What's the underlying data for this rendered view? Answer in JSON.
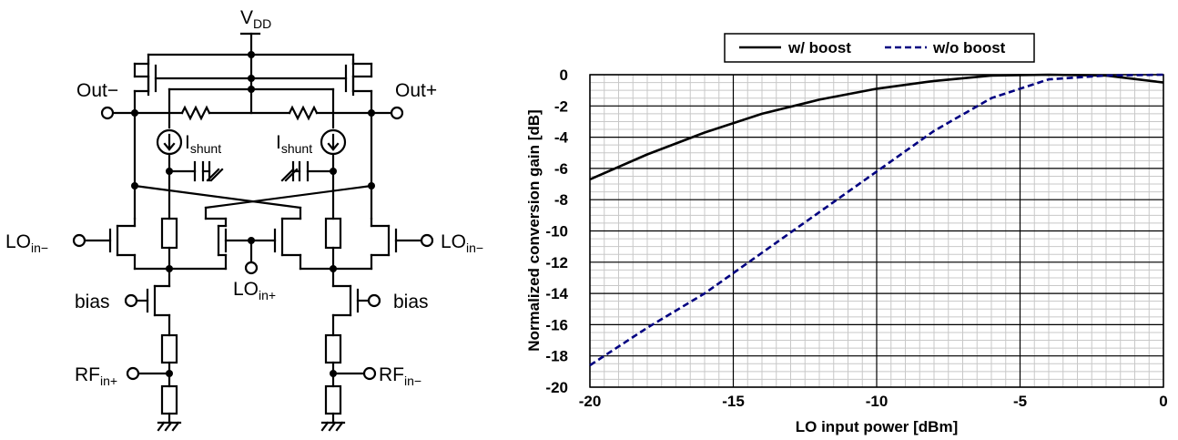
{
  "circuit": {
    "vdd": {
      "main": "V",
      "sub": "DD"
    },
    "out_minus": "Out−",
    "out_plus": "Out+",
    "ishunt_left": {
      "main": "I",
      "sub": "shunt"
    },
    "ishunt_right": {
      "main": "I",
      "sub": "shunt"
    },
    "lo_in_minus_left": {
      "main": "LO",
      "sub": "in−"
    },
    "lo_in_minus_right": {
      "main": "LO",
      "sub": "in−"
    },
    "lo_in_plus": {
      "main": "LO",
      "sub": "in+"
    },
    "bias_left": "bias",
    "bias_right": "bias",
    "rf_in_plus": {
      "main": "RF",
      "sub": "in+"
    },
    "rf_in_minus": {
      "main": "RF",
      "sub": "in−"
    }
  },
  "chart_data": {
    "type": "line",
    "xlabel": "LO input power [dBm]",
    "ylabel": "Normalized conversion gain [dB]",
    "xlim": [
      -20,
      0
    ],
    "ylim": [
      -20,
      0
    ],
    "xticks": [
      "-20",
      "-15",
      "-10",
      "-5",
      "0"
    ],
    "yticks": [
      "0",
      "-2",
      "-4",
      "-6",
      "-8",
      "-10",
      "-12",
      "-14",
      "-16",
      "-18",
      "-20"
    ],
    "grid": true,
    "legend_position": "top",
    "series": [
      {
        "name": "w/ boost",
        "color": "#000000",
        "style": "solid",
        "x": [
          -20,
          -18,
          -16,
          -14,
          -12,
          -10,
          -8,
          -6,
          -4,
          -2,
          0
        ],
        "y": [
          -6.7,
          -5.1,
          -3.7,
          -2.5,
          -1.6,
          -0.9,
          -0.4,
          -0.05,
          0,
          -0.05,
          -0.5
        ]
      },
      {
        "name": "w/o boost",
        "color": "#000080",
        "style": "dashed",
        "x": [
          -20,
          -18,
          -16,
          -14,
          -12,
          -10,
          -8,
          -6,
          -4,
          -2,
          0
        ],
        "y": [
          -18.6,
          -16.2,
          -14.0,
          -11.4,
          -8.8,
          -6.2,
          -3.6,
          -1.5,
          -0.3,
          -0.05,
          0
        ]
      }
    ]
  }
}
